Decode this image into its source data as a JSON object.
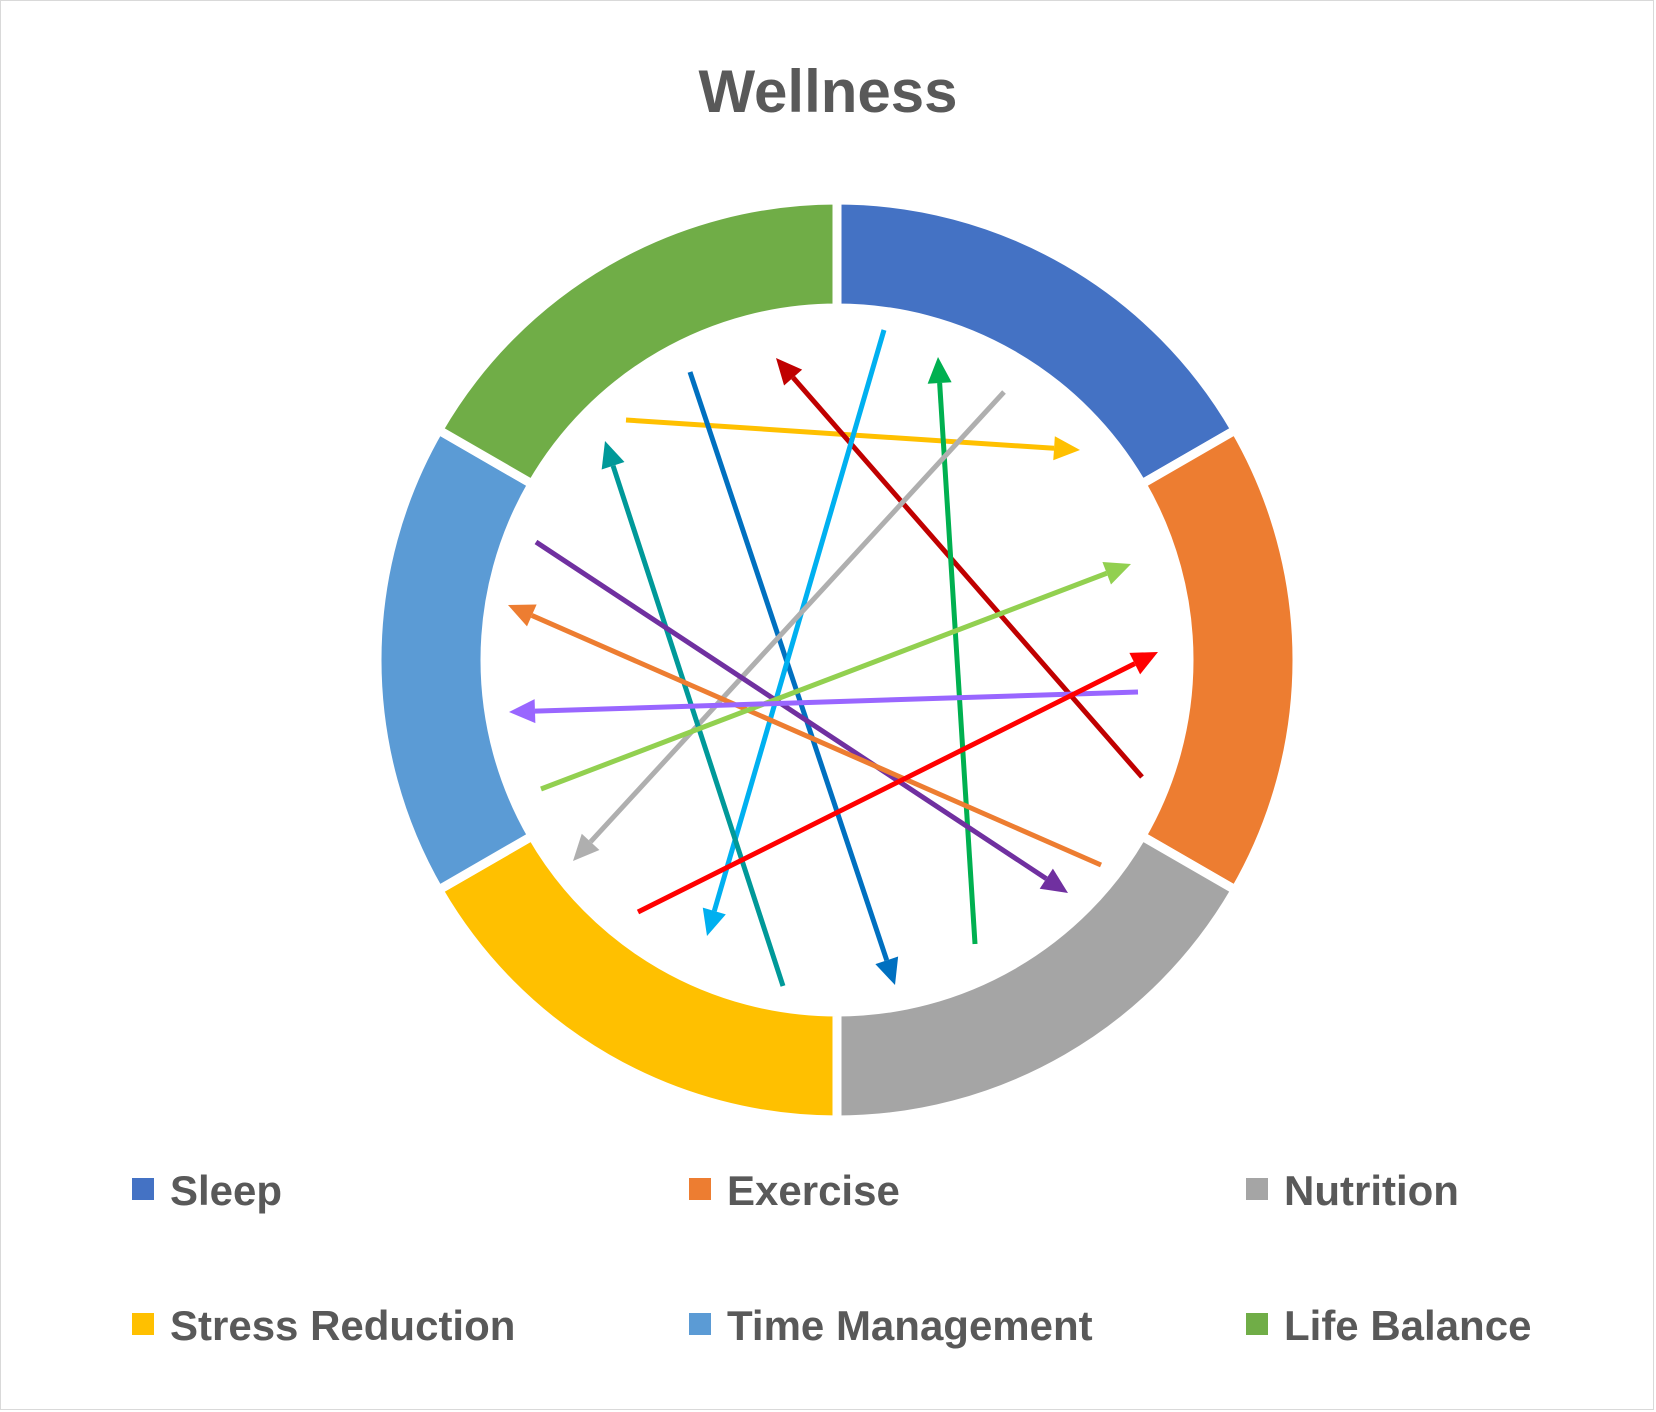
{
  "chart_data": {
    "type": "pie",
    "variant": "doughnut",
    "title": "Wellness",
    "categories": [
      "Sleep",
      "Exercise",
      "Nutrition",
      "Stress Reduction",
      "Time Management",
      "Life Balance"
    ],
    "values": [
      1,
      1,
      1,
      1,
      1,
      1
    ],
    "colors": [
      "#4472C4",
      "#ED7D31",
      "#A5A5A5",
      "#FFC000",
      "#5B9BD5",
      "#70AD47"
    ],
    "legend_position": "bottom",
    "text_color": "#595959",
    "decorative_arrow_colors": [
      "#FFC000",
      "#0070C0",
      "#C00000",
      "#00B0F0",
      "#00B050",
      "#AFAFAF",
      "#009999",
      "#7030A0",
      "#ED7D31",
      "#92D050",
      "#9966FF",
      "#FF0000"
    ]
  }
}
